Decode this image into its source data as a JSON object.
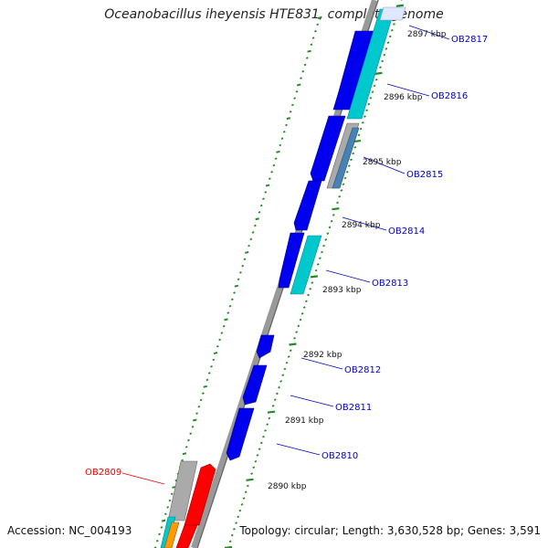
{
  "title": "Oceanobacillus iheyensis HTE831, complete genome",
  "accession": "Accession: NC_004193",
  "stats": "Topology: circular; Length: 3,630,528 bp; Genes: 3,591",
  "ticks": [
    "2897 kbp",
    "2896 kbp",
    "2895 kbp",
    "2894 kbp",
    "2893 kbp",
    "2892 kbp",
    "2891 kbp",
    "2890 kbp"
  ],
  "genes": [
    {
      "name": "OB2817",
      "color": "#0000cc"
    },
    {
      "name": "OB2816",
      "color": "#0000cc"
    },
    {
      "name": "OB2815",
      "color": "#0000cc"
    },
    {
      "name": "OB2814",
      "color": "#0000cc"
    },
    {
      "name": "OB2813",
      "color": "#0000cc"
    },
    {
      "name": "OB2812",
      "color": "#0000cc"
    },
    {
      "name": "OB2811",
      "color": "#0000cc"
    },
    {
      "name": "OB2810",
      "color": "#0000cc"
    },
    {
      "name": "OB2809",
      "color": "#ee0000"
    }
  ],
  "colors": {
    "blue_gene": "#0000ee",
    "cyan_gene": "#00c8cc",
    "gray_gene": "#aaaaaa",
    "steel_gene": "#4682b4",
    "red_gene": "#ff0000",
    "orange_gene": "#ff9900",
    "backbone": "#999999",
    "tick": "#228b22",
    "gc_dots": "#1a8a1a"
  },
  "icons": [
    "gene-arrow-icon"
  ]
}
